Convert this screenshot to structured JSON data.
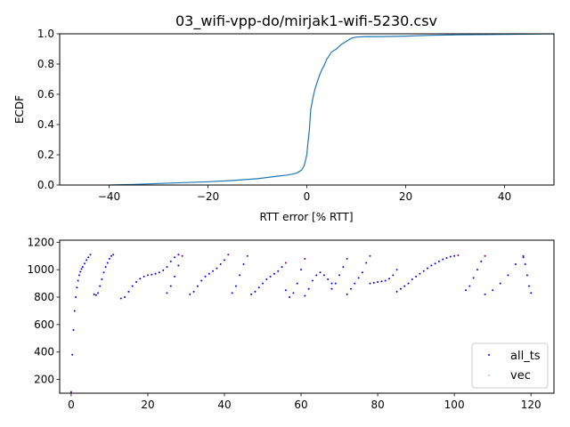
{
  "figure": {
    "title": "03_wifi-vpp-do/mirjak1-wifi-5230.csv"
  },
  "chart_data": [
    {
      "type": "line",
      "title": "03_wifi-vpp-do/mirjak1-wifi-5230.csv",
      "xlabel": "RTT error [% RTT]",
      "ylabel": "ECDF",
      "xlim": [
        -50,
        50
      ],
      "ylim": [
        0,
        1.0
      ],
      "x_ticks": [
        -40,
        -20,
        0,
        20,
        40
      ],
      "x_tick_labels": [
        "−40",
        "−20",
        "0",
        "20",
        "40"
      ],
      "y_ticks": [
        0,
        0.2,
        0.4,
        0.6,
        0.8,
        1.0
      ],
      "y_tick_labels": [
        "0.0",
        "0.2",
        "0.4",
        "0.6",
        "0.8",
        "1.0"
      ],
      "grid": false,
      "color": "#1f77b4",
      "series": [
        {
          "x": [
            -40,
            -35,
            -30,
            -25,
            -20,
            -15,
            -10,
            -8,
            -6,
            -4,
            -3,
            -2,
            -1.5,
            -1,
            -0.5,
            0,
            0.2,
            0.5,
            0.8,
            1.2,
            1.6,
            2,
            2.5,
            3,
            3.5,
            4,
            5,
            6,
            7,
            8,
            9,
            10,
            12,
            15,
            20,
            25,
            30,
            40,
            50
          ],
          "y": [
            0,
            0.004,
            0.01,
            0.016,
            0.022,
            0.03,
            0.042,
            0.05,
            0.058,
            0.066,
            0.072,
            0.08,
            0.09,
            0.1,
            0.13,
            0.2,
            0.27,
            0.36,
            0.5,
            0.57,
            0.63,
            0.67,
            0.72,
            0.76,
            0.79,
            0.83,
            0.88,
            0.9,
            0.93,
            0.95,
            0.97,
            0.978,
            0.982,
            0.982,
            0.985,
            0.99,
            0.993,
            0.996,
            1.0
          ]
        }
      ]
    },
    {
      "type": "scatter",
      "title": "",
      "xlabel": "",
      "ylabel": "",
      "xlim": [
        -3,
        126
      ],
      "ylim": [
        100,
        1215
      ],
      "x_ticks": [
        0,
        20,
        40,
        60,
        80,
        100,
        120
      ],
      "x_tick_labels": [
        "0",
        "20",
        "40",
        "60",
        "80",
        "100",
        "120"
      ],
      "y_ticks": [
        200,
        400,
        600,
        800,
        1000,
        1200
      ],
      "y_tick_labels": [
        "200",
        "400",
        "600",
        "800",
        "1000",
        "1200"
      ],
      "grid": false,
      "legend": {
        "position": "lower-right",
        "entries": [
          {
            "label": "all_ts",
            "color": "#0000ff",
            "marker": "dot"
          },
          {
            "label": "vec",
            "color": "#ff0000",
            "marker": "pixel"
          }
        ]
      },
      "series": [
        {
          "name": "all_ts",
          "color": "#0000ff",
          "segments": [
            {
              "x": [
                0,
                0.3,
                0.6,
                0.9,
                1.2,
                1.5,
                1.8,
                2.1,
                2.4,
                2.7,
                3.0,
                3.5,
                4.0,
                4.5,
                5.0
              ],
              "y": [
                110,
                380,
                560,
                700,
                800,
                870,
                920,
                960,
                985,
                1005,
                1020,
                1045,
                1070,
                1090,
                1110
              ]
            },
            {
              "x": [
                6,
                6.5,
                7,
                7.5,
                8,
                8.5,
                9,
                9.5,
                10,
                10.5,
                11
              ],
              "y": [
                820,
                815,
                830,
                880,
                930,
                980,
                1020,
                1050,
                1080,
                1100,
                1110
              ]
            },
            {
              "x": [
                13,
                14,
                15,
                16,
                17,
                18,
                19,
                20,
                21,
                22,
                23,
                24,
                25,
                26,
                27,
                28
              ],
              "y": [
                790,
                800,
                840,
                880,
                910,
                935,
                950,
                960,
                965,
                970,
                980,
                995,
                1020,
                1060,
                1090,
                1110
              ]
            },
            {
              "x": [
                25,
                26,
                27,
                28,
                29
              ],
              "y": [
                830,
                880,
                950,
                1030,
                1100
              ]
            },
            {
              "x": [
                31,
                32,
                33,
                34,
                35,
                36,
                37,
                38,
                39,
                40,
                41
              ],
              "y": [
                820,
                840,
                880,
                920,
                950,
                970,
                990,
                1010,
                1040,
                1070,
                1110
              ]
            },
            {
              "x": [
                42,
                43,
                44,
                45,
                46
              ],
              "y": [
                830,
                880,
                960,
                1040,
                1100
              ]
            },
            {
              "x": [
                47,
                48,
                49,
                50,
                51,
                52,
                53,
                54,
                55,
                56
              ],
              "y": [
                820,
                840,
                870,
                900,
                930,
                950,
                970,
                990,
                1020,
                1050
              ]
            },
            {
              "x": [
                56,
                57,
                58,
                59,
                60,
                61
              ],
              "y": [
                850,
                800,
                830,
                900,
                1000,
                1080
              ]
            },
            {
              "x": [
                61,
                62,
                63,
                64,
                65,
                66,
                67,
                68
              ],
              "y": [
                810,
                860,
                920,
                960,
                980,
                960,
                930,
                900
              ]
            },
            {
              "x": [
                68,
                69,
                70,
                71,
                72
              ],
              "y": [
                860,
                900,
                960,
                1020,
                1080
              ]
            },
            {
              "x": [
                72,
                73,
                74,
                75,
                76,
                77,
                78
              ],
              "y": [
                820,
                860,
                900,
                940,
                980,
                1050,
                1100
              ]
            },
            {
              "x": [
                78,
                79,
                80,
                81,
                82,
                83,
                84,
                85
              ],
              "y": [
                900,
                905,
                910,
                915,
                920,
                935,
                960,
                1000
              ]
            },
            {
              "x": [
                85,
                86,
                87,
                88,
                89,
                90,
                91,
                92,
                93,
                94,
                95,
                96,
                97,
                98,
                99,
                100,
                101
              ],
              "y": [
                840,
                860,
                880,
                900,
                930,
                950,
                970,
                990,
                1010,
                1030,
                1045,
                1060,
                1075,
                1085,
                1095,
                1100,
                1105
              ]
            },
            {
              "x": [
                103,
                104,
                105,
                106,
                107,
                108
              ],
              "y": [
                850,
                880,
                940,
                1000,
                1060,
                1100
              ]
            },
            {
              "x": [
                108,
                110,
                112,
                114,
                116,
                118
              ],
              "y": [
                820,
                850,
                900,
                960,
                1040,
                1100
              ]
            },
            {
              "x": [
                118,
                118.5,
                119,
                119.5,
                120
              ],
              "y": [
                1090,
                1040,
                960,
                880,
                830
              ]
            }
          ]
        },
        {
          "name": "vec",
          "color": "#ff0000",
          "segments": [
            {
              "x": [
                0,
                5,
                11,
                20,
                29,
                41,
                46,
                56,
                61,
                72,
                78,
                85,
                101,
                108,
                118
              ],
              "y": [
                110,
                1110,
                1110,
                960,
                1100,
                1110,
                1100,
                1050,
                1080,
                1080,
                1100,
                1000,
                1105,
                1100,
                1100
              ]
            }
          ]
        }
      ]
    }
  ]
}
